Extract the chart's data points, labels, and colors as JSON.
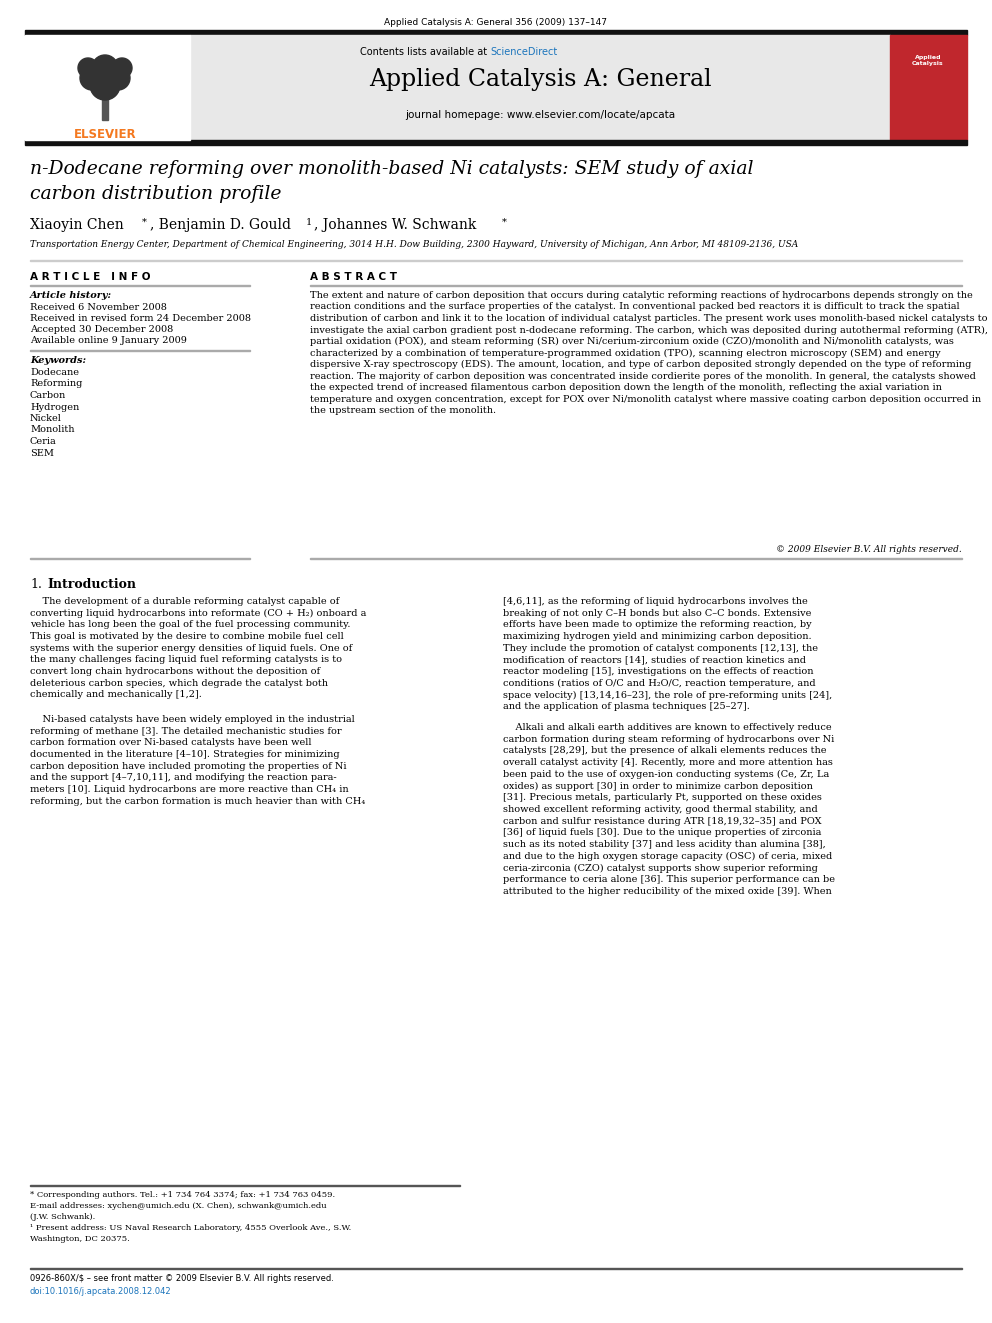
{
  "page_title": "Applied Catalysis A: General 356 (2009) 137–147",
  "journal_name": "Applied Catalysis A: General",
  "journal_url": "journal homepage: www.elsevier.com/locate/apcata",
  "sciencedirect_pre": "Contents lists available at ",
  "sciencedirect_link": "ScienceDirect",
  "paper_title_line1": "n-Dodecane reforming over monolith-based Ni catalysts: SEM study of axial",
  "paper_title_line2": "carbon distribution profile",
  "author1": "Xiaoyin Chen",
  "author2": ", Benjamin D. Gould",
  "author3": ", Johannes W. Schwank",
  "affiliation": "Transportation Energy Center, Department of Chemical Engineering, 3014 H.H. Dow Building, 2300 Hayward, University of Michigan, Ann Arbor, MI 48109-2136, USA",
  "article_info_title": "A R T I C L E   I N F O",
  "abstract_title": "A B S T R A C T",
  "article_history_title": "Article history:",
  "received": "Received 6 November 2008",
  "revised": "Received in revised form 24 December 2008",
  "accepted": "Accepted 30 December 2008",
  "available": "Available online 9 January 2009",
  "keywords_title": "Keywords:",
  "keywords": [
    "Dodecane",
    "Reforming",
    "Carbon",
    "Hydrogen",
    "Nickel",
    "Monolith",
    "Ceria",
    "SEM"
  ],
  "abstract_text": "The extent and nature of carbon deposition that occurs during catalytic reforming reactions of hydrocarbons depends strongly on the reaction conditions and the surface properties of the catalyst. In conventional packed bed reactors it is difficult to track the spatial distribution of carbon and link it to the location of individual catalyst particles. The present work uses monolith-based nickel catalysts to investigate the axial carbon gradient post n-dodecane reforming. The carbon, which was deposited during autothermal reforming (ATR), partial oxidation (POX), and steam reforming (SR) over Ni/cerium-zirconium oxide (CZO)/monolith and Ni/monolith catalysts, was characterized by a combination of temperature-programmed oxidation (TPO), scanning electron microscopy (SEM) and energy dispersive X-ray spectroscopy (EDS). The amount, location, and type of carbon deposited strongly depended on the type of reforming reaction. The majority of carbon deposition was concentrated inside cordierite pores of the monolith. In general, the catalysts showed the expected trend of increased filamentous carbon deposition down the length of the monolith, reflecting the axial variation in temperature and oxygen concentration, except for POX over Ni/monolith catalyst where massive coating carbon deposition occurred in the upstream section of the monolith.",
  "copyright": "© 2009 Elsevier B.V. All rights reserved.",
  "section1_num": "1.",
  "section1_title": "Introduction",
  "left_col_para1": "    The development of a durable reforming catalyst capable of\nconverting liquid hydrocarbons into reformate (CO + H₂) onboard a\nvehicle has long been the goal of the fuel processing community.\nThis goal is motivated by the desire to combine mobile fuel cell\nsystems with the superior energy densities of liquid fuels. One of\nthe many challenges facing liquid fuel reforming catalysts is to\nconvert long chain hydrocarbons without the deposition of\ndeleterious carbon species, which degrade the catalyst both\nchemically and mechanically [1,2].",
  "left_col_para2": "    Ni-based catalysts have been widely employed in the industrial\nreforming of methane [3]. The detailed mechanistic studies for\ncarbon formation over Ni-based catalysts have been well\ndocumented in the literature [4–10]. Strategies for minimizing\ncarbon deposition have included promoting the properties of Ni\nand the support [4–7,10,11], and modifying the reaction para-\nmeters [10]. Liquid hydrocarbons are more reactive than CH₄ in\nreforming, but the carbon formation is much heavier than with CH₄",
  "right_col_para1": "[4,6,11], as the reforming of liquid hydrocarbons involves the\nbreaking of not only C–H bonds but also C–C bonds. Extensive\nefforts have been made to optimize the reforming reaction, by\nmaximizing hydrogen yield and minimizing carbon deposition.\nThey include the promotion of catalyst components [12,13], the\nmodification of reactors [14], studies of reaction kinetics and\nreactor modeling [15], investigations on the effects of reaction\nconditions (ratios of O/C and H₂O/C, reaction temperature, and\nspace velocity) [13,14,16–23], the role of pre-reforming units [24],\nand the application of plasma techniques [25–27].",
  "right_col_para2": "    Alkali and alkali earth additives are known to effectively reduce\ncarbon formation during steam reforming of hydrocarbons over Ni\ncatalysts [28,29], but the presence of alkali elements reduces the\noverall catalyst activity [4]. Recently, more and more attention has\nbeen paid to the use of oxygen-ion conducting systems (Ce, Zr, La\noxides) as support [30] in order to minimize carbon deposition\n[31]. Precious metals, particularly Pt, supported on these oxides\nshowed excellent reforming activity, good thermal stability, and\ncarbon and sulfur resistance during ATR [18,19,32–35] and POX\n[36] of liquid fuels [30]. Due to the unique properties of zirconia\nsuch as its noted stability [37] and less acidity than alumina [38],\nand due to the high oxygen storage capacity (OSC) of ceria, mixed\nceria-zirconia (CZO) catalyst supports show superior reforming\nperformance to ceria alone [36]. This superior performance can be\nattributed to the higher reducibility of the mixed oxide [39]. When",
  "footer_line1": "* Corresponding authors. Tel.: +1 734 764 3374; fax: +1 734 763 0459.",
  "footer_line2": "E-mail addresses: xychen@umich.edu (X. Chen), schwank@umich.edu",
  "footer_line3": "(J.W. Schwank).",
  "footer_line4": "¹ Present address: US Naval Research Laboratory, 4555 Overlook Ave., S.W.",
  "footer_line5": "Washington, DC 20375.",
  "footer_issn": "0926-860X/$ – see front matter © 2009 Elsevier B.V. All rights reserved.",
  "footer_doi": "doi:10.1016/j.apcata.2008.12.042",
  "bg_color": "#ffffff",
  "header_bg": "#e8e8e8",
  "elsevier_orange": "#f47920",
  "sciencedirect_blue": "#1c75bc",
  "dark_bar_color": "#111111",
  "link_color": "#1c75bc",
  "separator_color": "#aaaaaa",
  "red_cover": "#c0272d"
}
